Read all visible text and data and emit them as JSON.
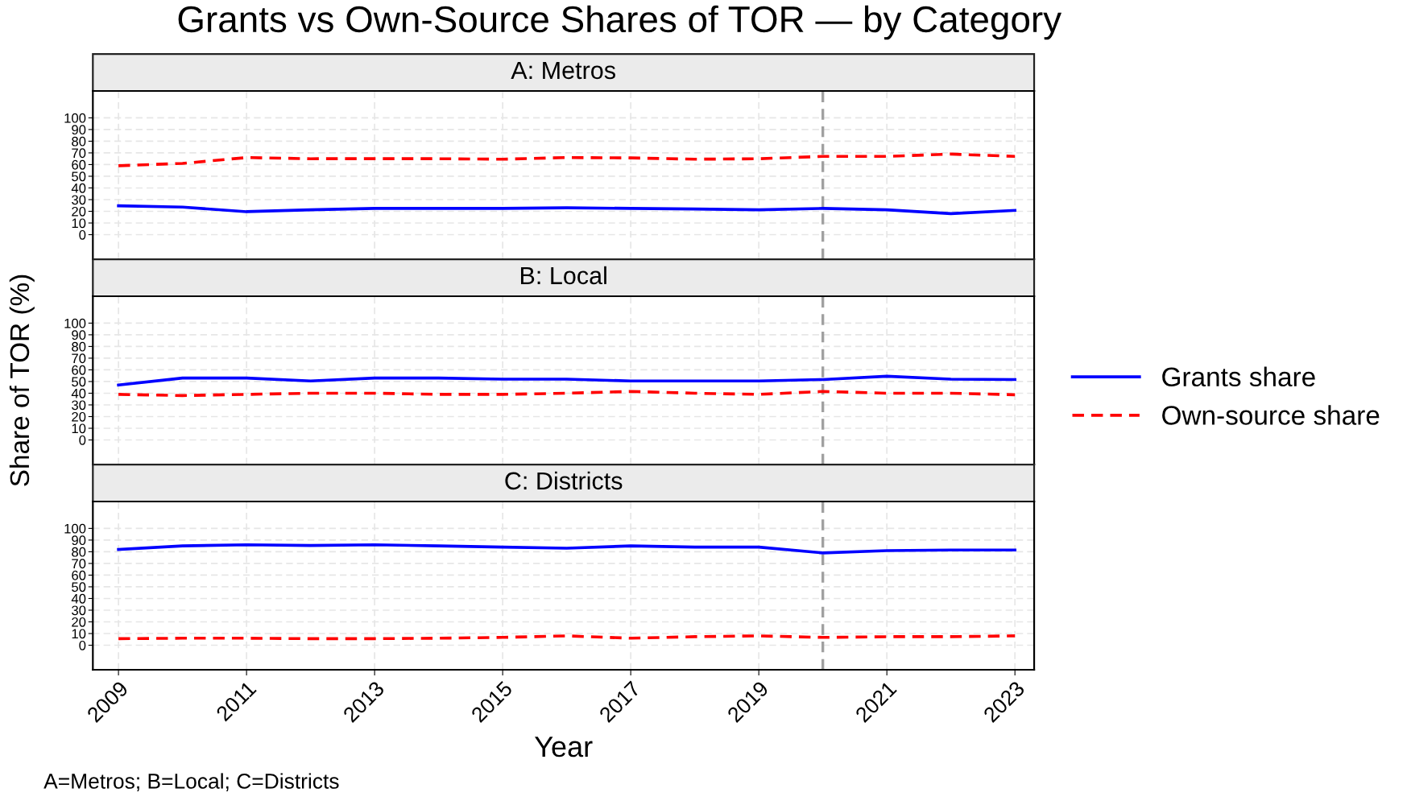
{
  "chart_data": [
    {
      "type": "line",
      "title": "Grants vs Own-Source Shares of TOR — by Category",
      "subtitle": "A: Metros",
      "x": [
        2009,
        2010,
        2011,
        2012,
        2013,
        2014,
        2015,
        2016,
        2017,
        2018,
        2019,
        2020,
        2021,
        2022,
        2023
      ],
      "series": [
        {
          "name": "Grants share",
          "color": "#0000ff",
          "line_style": "solid",
          "values": [
            24.7,
            23.6,
            19.7,
            21.3,
            22.5,
            22.5,
            22.5,
            23,
            22.5,
            22,
            21.3,
            22.5,
            21.3,
            18,
            20.8
          ]
        },
        {
          "name": "Own-source share",
          "color": "#ff0000",
          "line_style": "dashed",
          "values": [
            59,
            61,
            66,
            65,
            65,
            65,
            64.6,
            66,
            65.7,
            64.6,
            65,
            67,
            67,
            69,
            67
          ]
        }
      ],
      "xlim": [
        2008.6,
        2023.3
      ],
      "ylim": [
        -21,
        123
      ],
      "xticks": [
        2009,
        2011,
        2013,
        2015,
        2017,
        2019,
        2021,
        2023
      ],
      "yticks": [
        0,
        10,
        20,
        30,
        40,
        50,
        60,
        70,
        80,
        90,
        100
      ],
      "ref_lines": [
        {
          "axis": "x",
          "value": 2020,
          "color": "#a0a0a0",
          "line_style": "dashed"
        }
      ],
      "grid": true,
      "legend": "right",
      "tick_labels": "y"
    },
    {
      "type": "line",
      "subtitle": "B: Local",
      "ylabel": "Share of TOR (%)",
      "x": [
        2009,
        2010,
        2011,
        2012,
        2013,
        2014,
        2015,
        2016,
        2017,
        2018,
        2019,
        2020,
        2021,
        2022,
        2023
      ],
      "series": [
        {
          "color": "#0000ff",
          "line_style": "solid",
          "values": [
            47,
            53,
            53,
            50.5,
            53,
            53,
            52,
            52,
            50.5,
            50.5,
            50.5,
            51.7,
            54.5,
            52,
            51.7
          ]
        },
        {
          "color": "#ff0000",
          "line_style": "dashed",
          "values": [
            39,
            38,
            39,
            40,
            40,
            39,
            39,
            40,
            41.5,
            40,
            39,
            41.5,
            40,
            40,
            38.7
          ]
        }
      ],
      "xlim": [
        2008.6,
        2023.3
      ],
      "ylim": [
        -21,
        123
      ],
      "xticks": [
        2009,
        2011,
        2013,
        2015,
        2017,
        2019,
        2021,
        2023
      ],
      "yticks": [
        0,
        10,
        20,
        30,
        40,
        50,
        60,
        70,
        80,
        90,
        100
      ],
      "ref_lines": [
        {
          "axis": "x",
          "value": 2020,
          "color": "#a0a0a0",
          "line_style": "dashed"
        }
      ],
      "grid": true,
      "tick_labels": "y"
    },
    {
      "type": "line",
      "subtitle": "C: Districts",
      "xlabel": "Year",
      "annotations": [
        "A=Metros; B=Local; C=Districts"
      ],
      "x": [
        2009,
        2010,
        2011,
        2012,
        2013,
        2014,
        2015,
        2016,
        2017,
        2018,
        2019,
        2020,
        2021,
        2022,
        2023
      ],
      "series": [
        {
          "color": "#0000ff",
          "line_style": "solid",
          "values": [
            82,
            85,
            86,
            85.4,
            86,
            85,
            84,
            83,
            85,
            84,
            84,
            79,
            81,
            81.5,
            81.5
          ]
        },
        {
          "color": "#ff0000",
          "line_style": "dashed",
          "values": [
            5.6,
            6,
            6,
            5.6,
            5.6,
            6,
            6.7,
            8,
            6,
            7.3,
            8,
            6.7,
            7.3,
            7.3,
            8
          ]
        }
      ],
      "xlim": [
        2008.6,
        2023.3
      ],
      "ylim": [
        -21,
        123
      ],
      "xticks": [
        2009,
        2011,
        2013,
        2015,
        2017,
        2019,
        2021,
        2023
      ],
      "yticks": [
        0,
        10,
        20,
        30,
        40,
        50,
        60,
        70,
        80,
        90,
        100
      ],
      "ref_lines": [
        {
          "axis": "x",
          "value": 2020,
          "color": "#a0a0a0",
          "line_style": "dashed"
        }
      ],
      "grid": true,
      "legend": false
    }
  ]
}
